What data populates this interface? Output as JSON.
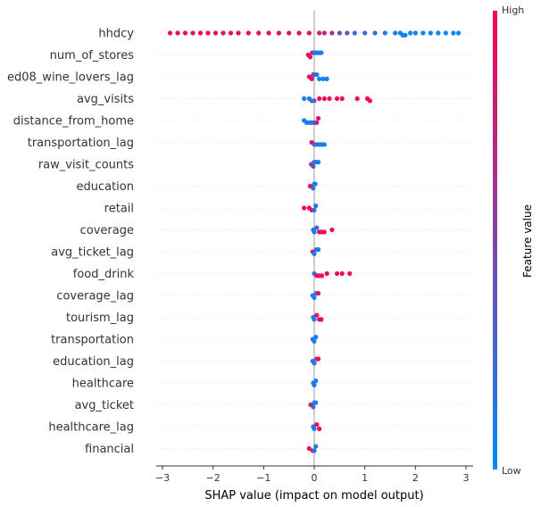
{
  "chart_data": {
    "type": "scatter",
    "subtype": "shap-beeswarm",
    "xlabel": "SHAP value (impact on model output)",
    "xlim": [
      -3.2,
      3.2
    ],
    "xticks": [
      "−3",
      "−2",
      "−1",
      "0",
      "1",
      "2",
      "3"
    ],
    "grid": false,
    "zero_line": true,
    "legend": {
      "type": "colorbar",
      "placement": "right",
      "title": "Feature value",
      "high_label": "High",
      "low_label": "Low",
      "colors": [
        "#008bfb",
        "#ff0052"
      ]
    },
    "features": [
      {
        "name": "hhdcy",
        "points": [
          {
            "x": -2.85,
            "v": 0.95
          },
          {
            "x": -2.7,
            "v": 0.98
          },
          {
            "x": -2.55,
            "v": 0.9
          },
          {
            "x": -2.4,
            "v": 0.96
          },
          {
            "x": -2.25,
            "v": 0.92
          },
          {
            "x": -2.1,
            "v": 0.97
          },
          {
            "x": -1.95,
            "v": 0.9
          },
          {
            "x": -1.8,
            "v": 0.94
          },
          {
            "x": -1.65,
            "v": 0.88
          },
          {
            "x": -1.5,
            "v": 0.93
          },
          {
            "x": -1.3,
            "v": 0.9
          },
          {
            "x": -1.1,
            "v": 0.88
          },
          {
            "x": -0.9,
            "v": 0.9
          },
          {
            "x": -0.7,
            "v": 0.86
          },
          {
            "x": -0.5,
            "v": 0.88
          },
          {
            "x": -0.3,
            "v": 0.84
          },
          {
            "x": -0.1,
            "v": 0.85
          },
          {
            "x": 0.1,
            "v": 0.8
          },
          {
            "x": 0.2,
            "v": 0.72
          },
          {
            "x": 0.35,
            "v": 0.6
          },
          {
            "x": 0.5,
            "v": 0.45
          },
          {
            "x": 0.65,
            "v": 0.35
          },
          {
            "x": 0.8,
            "v": 0.25
          },
          {
            "x": 1.0,
            "v": 0.2
          },
          {
            "x": 1.2,
            "v": 0.15
          },
          {
            "x": 1.4,
            "v": 0.12
          },
          {
            "x": 1.6,
            "v": 0.1
          },
          {
            "x": 1.7,
            "v": 0.08
          },
          {
            "x": 1.75,
            "v": 0.06
          },
          {
            "x": 1.8,
            "v": 0.08
          },
          {
            "x": 1.9,
            "v": 0.05
          },
          {
            "x": 2.0,
            "v": 0.06
          },
          {
            "x": 2.15,
            "v": 0.04
          },
          {
            "x": 2.3,
            "v": 0.05
          },
          {
            "x": 2.45,
            "v": 0.03
          },
          {
            "x": 2.6,
            "v": 0.04
          },
          {
            "x": 2.75,
            "v": 0.02
          },
          {
            "x": 2.85,
            "v": 0.01
          }
        ]
      },
      {
        "name": "num_of_stores",
        "points": [
          {
            "x": -0.12,
            "v": 0.9
          },
          {
            "x": -0.08,
            "v": 0.85
          },
          {
            "x": -0.04,
            "v": 0.8
          },
          {
            "x": 0.0,
            "v": 0.3
          },
          {
            "x": 0.03,
            "v": 0.1
          },
          {
            "x": 0.06,
            "v": 0.1
          },
          {
            "x": 0.1,
            "v": 0.05
          },
          {
            "x": 0.14,
            "v": 0.05
          }
        ]
      },
      {
        "name": "ed08_wine_lovers_lag",
        "points": [
          {
            "x": -0.1,
            "v": 0.9
          },
          {
            "x": -0.05,
            "v": 0.85
          },
          {
            "x": -0.02,
            "v": 0.8
          },
          {
            "x": 0.0,
            "v": 0.3
          },
          {
            "x": 0.05,
            "v": 0.1
          },
          {
            "x": 0.1,
            "v": 0.05
          },
          {
            "x": 0.18,
            "v": 0.05
          },
          {
            "x": 0.25,
            "v": 0.05
          }
        ]
      },
      {
        "name": "avg_visits",
        "points": [
          {
            "x": -0.2,
            "v": 0.1
          },
          {
            "x": -0.1,
            "v": 0.1
          },
          {
            "x": -0.05,
            "v": 0.2
          },
          {
            "x": 0.0,
            "v": 0.3
          },
          {
            "x": 0.1,
            "v": 0.9
          },
          {
            "x": 0.2,
            "v": 0.95
          },
          {
            "x": 0.3,
            "v": 0.95
          },
          {
            "x": 0.45,
            "v": 0.95
          },
          {
            "x": 0.55,
            "v": 0.95
          },
          {
            "x": 0.85,
            "v": 0.97
          },
          {
            "x": 1.05,
            "v": 0.98
          },
          {
            "x": 1.1,
            "v": 0.98
          }
        ]
      },
      {
        "name": "distance_from_home",
        "points": [
          {
            "x": -0.2,
            "v": 0.1
          },
          {
            "x": -0.15,
            "v": 0.1
          },
          {
            "x": -0.1,
            "v": 0.1
          },
          {
            "x": -0.05,
            "v": 0.1
          },
          {
            "x": 0.0,
            "v": 0.3
          },
          {
            "x": 0.05,
            "v": 0.7
          },
          {
            "x": 0.08,
            "v": 0.85
          }
        ]
      },
      {
        "name": "transportation_lag",
        "points": [
          {
            "x": -0.05,
            "v": 0.9
          },
          {
            "x": 0.0,
            "v": 0.3
          },
          {
            "x": 0.05,
            "v": 0.1
          },
          {
            "x": 0.1,
            "v": 0.1
          },
          {
            "x": 0.15,
            "v": 0.1
          },
          {
            "x": 0.2,
            "v": 0.05
          }
        ]
      },
      {
        "name": "raw_visit_counts",
        "points": [
          {
            "x": -0.06,
            "v": 0.6
          },
          {
            "x": -0.02,
            "v": 0.4
          },
          {
            "x": 0.0,
            "v": 0.2
          },
          {
            "x": 0.04,
            "v": 0.1
          },
          {
            "x": 0.08,
            "v": 0.1
          }
        ]
      },
      {
        "name": "education",
        "points": [
          {
            "x": -0.08,
            "v": 0.9
          },
          {
            "x": -0.02,
            "v": 0.2
          },
          {
            "x": 0.0,
            "v": 0.1
          },
          {
            "x": 0.02,
            "v": 0.1
          }
        ]
      },
      {
        "name": "retail",
        "points": [
          {
            "x": -0.2,
            "v": 0.95
          },
          {
            "x": -0.1,
            "v": 0.95
          },
          {
            "x": -0.05,
            "v": 0.95
          },
          {
            "x": 0.0,
            "v": 0.2
          },
          {
            "x": 0.03,
            "v": 0.1
          }
        ]
      },
      {
        "name": "coverage",
        "points": [
          {
            "x": -0.02,
            "v": 0.1
          },
          {
            "x": 0.0,
            "v": 0.1
          },
          {
            "x": 0.05,
            "v": 0.2
          },
          {
            "x": 0.1,
            "v": 0.95
          },
          {
            "x": 0.15,
            "v": 0.95
          },
          {
            "x": 0.2,
            "v": 0.95
          },
          {
            "x": 0.35,
            "v": 0.95
          }
        ]
      },
      {
        "name": "avg_ticket_lag",
        "points": [
          {
            "x": -0.03,
            "v": 0.9
          },
          {
            "x": 0.0,
            "v": 0.1
          },
          {
            "x": 0.04,
            "v": 0.1
          },
          {
            "x": 0.08,
            "v": 0.1
          }
        ]
      },
      {
        "name": "food_drink",
        "points": [
          {
            "x": 0.0,
            "v": 0.1
          },
          {
            "x": 0.05,
            "v": 0.9
          },
          {
            "x": 0.1,
            "v": 0.95
          },
          {
            "x": 0.15,
            "v": 0.95
          },
          {
            "x": 0.25,
            "v": 0.95
          },
          {
            "x": 0.45,
            "v": 0.95
          },
          {
            "x": 0.55,
            "v": 0.95
          },
          {
            "x": 0.7,
            "v": 0.95
          }
        ]
      },
      {
        "name": "coverage_lag",
        "points": [
          {
            "x": -0.03,
            "v": 0.1
          },
          {
            "x": 0.0,
            "v": 0.1
          },
          {
            "x": 0.04,
            "v": 0.2
          },
          {
            "x": 0.08,
            "v": 0.9
          }
        ]
      },
      {
        "name": "tourism_lag",
        "points": [
          {
            "x": -0.02,
            "v": 0.1
          },
          {
            "x": 0.0,
            "v": 0.1
          },
          {
            "x": 0.05,
            "v": 0.9
          },
          {
            "x": 0.1,
            "v": 0.9
          },
          {
            "x": 0.14,
            "v": 0.95
          }
        ]
      },
      {
        "name": "transportation",
        "points": [
          {
            "x": -0.03,
            "v": 0.1
          },
          {
            "x": 0.0,
            "v": 0.1
          },
          {
            "x": 0.03,
            "v": 0.1
          }
        ]
      },
      {
        "name": "education_lag",
        "points": [
          {
            "x": -0.03,
            "v": 0.1
          },
          {
            "x": 0.0,
            "v": 0.1
          },
          {
            "x": 0.05,
            "v": 0.9
          },
          {
            "x": 0.08,
            "v": 0.9
          }
        ]
      },
      {
        "name": "healthcare",
        "points": [
          {
            "x": -0.02,
            "v": 0.1
          },
          {
            "x": 0.0,
            "v": 0.1
          },
          {
            "x": 0.03,
            "v": 0.1
          }
        ]
      },
      {
        "name": "avg_ticket",
        "points": [
          {
            "x": -0.07,
            "v": 0.9
          },
          {
            "x": -0.02,
            "v": 0.2
          },
          {
            "x": 0.0,
            "v": 0.1
          },
          {
            "x": 0.03,
            "v": 0.1
          }
        ]
      },
      {
        "name": "healthcare_lag",
        "points": [
          {
            "x": -0.02,
            "v": 0.1
          },
          {
            "x": 0.0,
            "v": 0.1
          },
          {
            "x": 0.05,
            "v": 0.9
          },
          {
            "x": 0.1,
            "v": 0.95
          }
        ]
      },
      {
        "name": "financial",
        "points": [
          {
            "x": -0.1,
            "v": 0.9
          },
          {
            "x": -0.03,
            "v": 0.9
          },
          {
            "x": 0.0,
            "v": 0.1
          },
          {
            "x": 0.03,
            "v": 0.1
          }
        ]
      }
    ]
  }
}
